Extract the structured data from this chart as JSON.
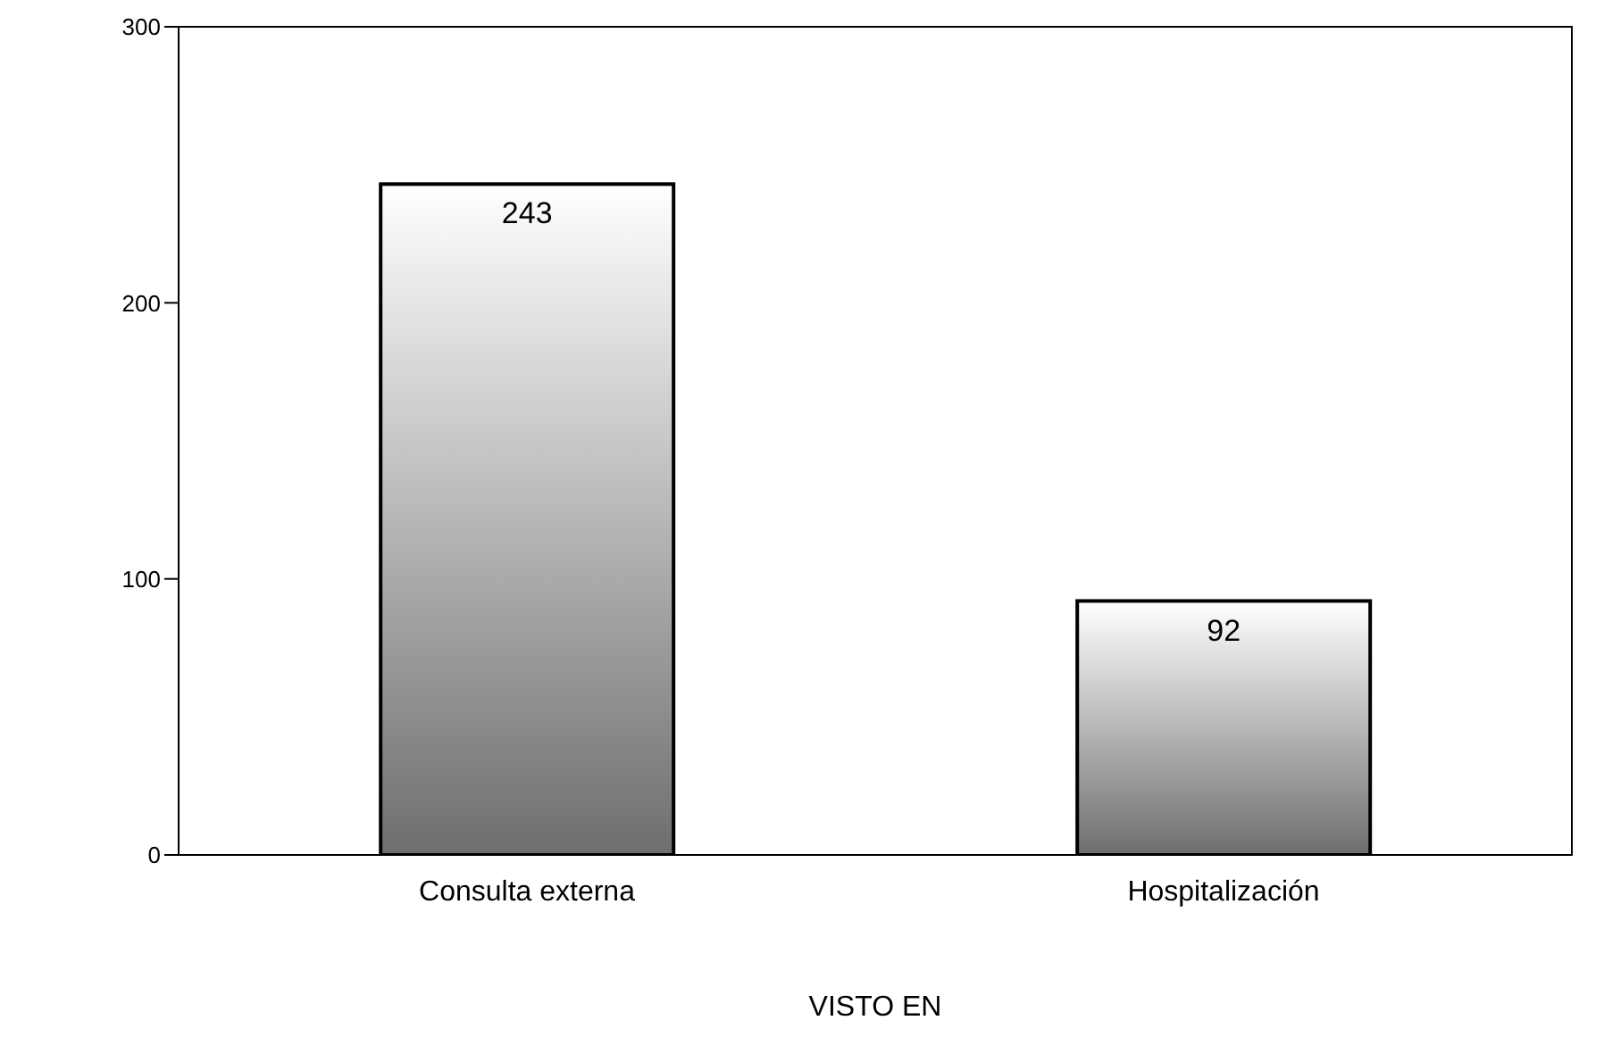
{
  "chart_data": {
    "type": "bar",
    "xlabel": "VISTO EN",
    "categories": [
      "Consulta externa",
      "Hospitalización"
    ],
    "values": [
      243,
      92
    ],
    "color": "#6e6e6e",
    "ylim": [
      0,
      300
    ],
    "yticks": [
      0,
      100,
      200,
      300
    ],
    "grid": false,
    "data_labels": true
  }
}
